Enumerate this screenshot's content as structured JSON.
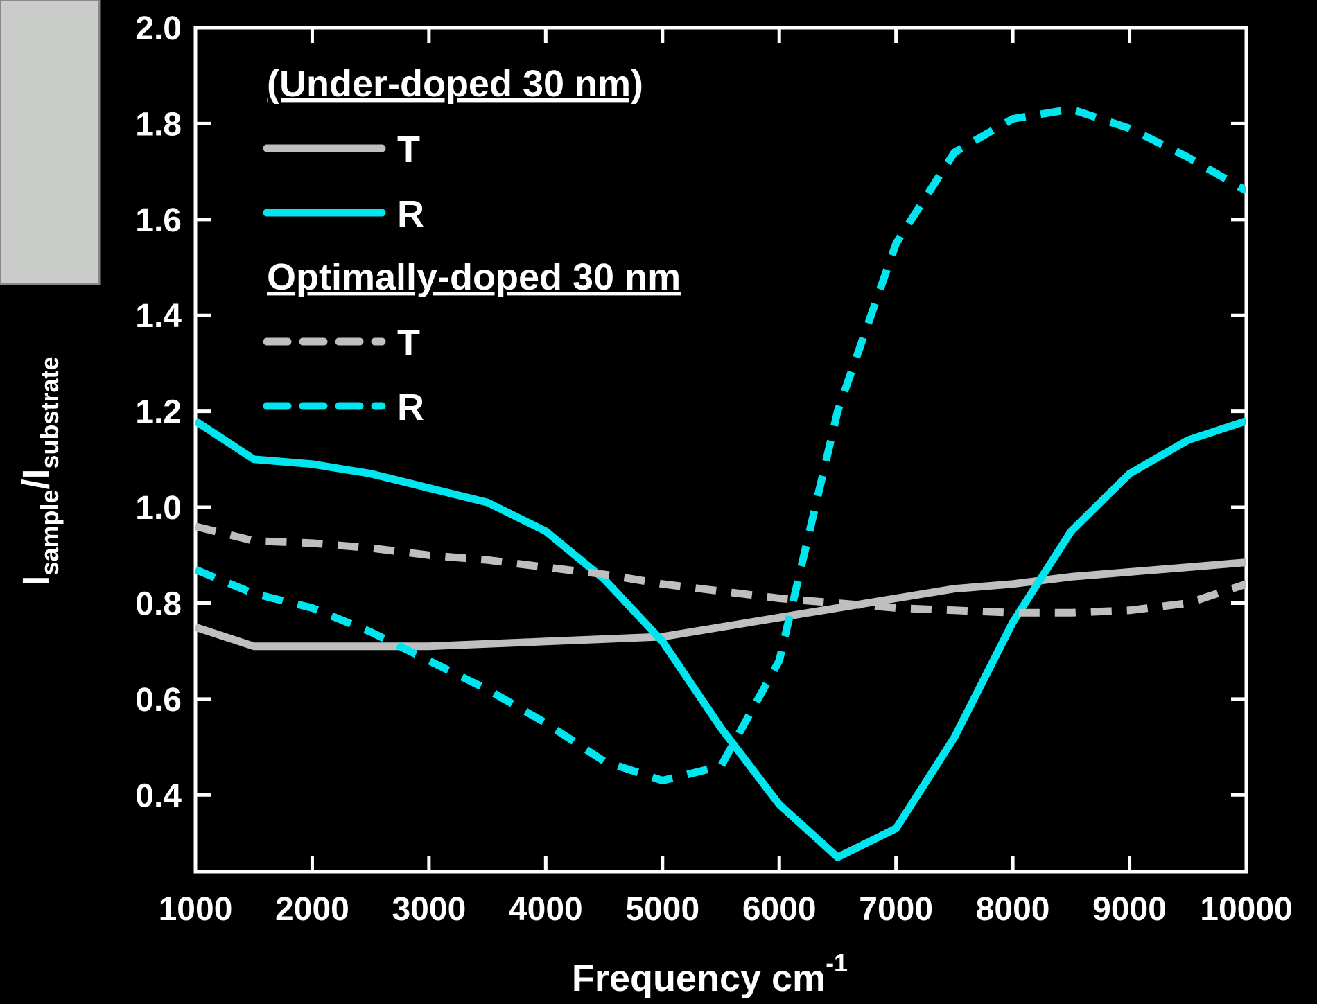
{
  "chart_data": {
    "type": "line",
    "xlabel": [
      "Frequency  cm",
      "-1"
    ],
    "ylabel": [
      "I",
      "sample",
      "/I",
      "substrate"
    ],
    "xlim": [
      1000,
      10000
    ],
    "ylim": [
      0.24,
      2.0
    ],
    "xticks": [
      1000,
      2000,
      3000,
      4000,
      5000,
      6000,
      7000,
      8000,
      9000,
      10000
    ],
    "yticks": [
      0.4,
      0.6,
      0.8,
      {
        "value": 1,
        "label": "1.0"
      },
      1.2,
      1.4,
      1.6,
      1.8,
      {
        "value": 2,
        "label": "2.0"
      }
    ],
    "x": [
      1000,
      1500,
      2000,
      2500,
      3000,
      3500,
      4000,
      4500,
      5000,
      5500,
      6000,
      6500,
      7000,
      7500,
      8000,
      8500,
      9000,
      9500,
      10000
    ],
    "series": [
      {
        "name": "T",
        "group": "(Under-doped 30 nm)",
        "color": "#bfbfbf",
        "dashed": false,
        "values": [
          0.75,
          0.71,
          0.71,
          0.71,
          0.71,
          0.715,
          0.72,
          0.725,
          0.73,
          0.75,
          0.77,
          0.79,
          0.81,
          0.83,
          0.84,
          0.855,
          0.865,
          0.875,
          0.885
        ]
      },
      {
        "name": "R",
        "group": "(Under-doped 30 nm)",
        "color": "#00e5ee",
        "dashed": false,
        "values": [
          1.18,
          1.1,
          1.09,
          1.07,
          1.04,
          1.01,
          0.95,
          0.85,
          0.72,
          0.54,
          0.38,
          0.27,
          0.33,
          0.52,
          0.76,
          0.95,
          1.07,
          1.14,
          1.18
        ]
      },
      {
        "name": "T",
        "group": "Optimally-doped 30 nm",
        "color": "#bfbfbf",
        "dashed": true,
        "values": [
          0.96,
          0.93,
          0.925,
          0.915,
          0.9,
          0.89,
          0.875,
          0.86,
          0.84,
          0.825,
          0.81,
          0.8,
          0.79,
          0.785,
          0.78,
          0.78,
          0.785,
          0.8,
          0.84
        ]
      },
      {
        "name": "R",
        "group": "Optimally-doped 30 nm",
        "color": "#00e5ee",
        "dashed": true,
        "values": [
          0.87,
          0.82,
          0.79,
          0.74,
          0.68,
          0.62,
          0.55,
          0.47,
          0.43,
          0.46,
          0.68,
          1.2,
          1.55,
          1.74,
          1.81,
          1.83,
          1.79,
          1.73,
          1.66
        ]
      }
    ]
  }
}
